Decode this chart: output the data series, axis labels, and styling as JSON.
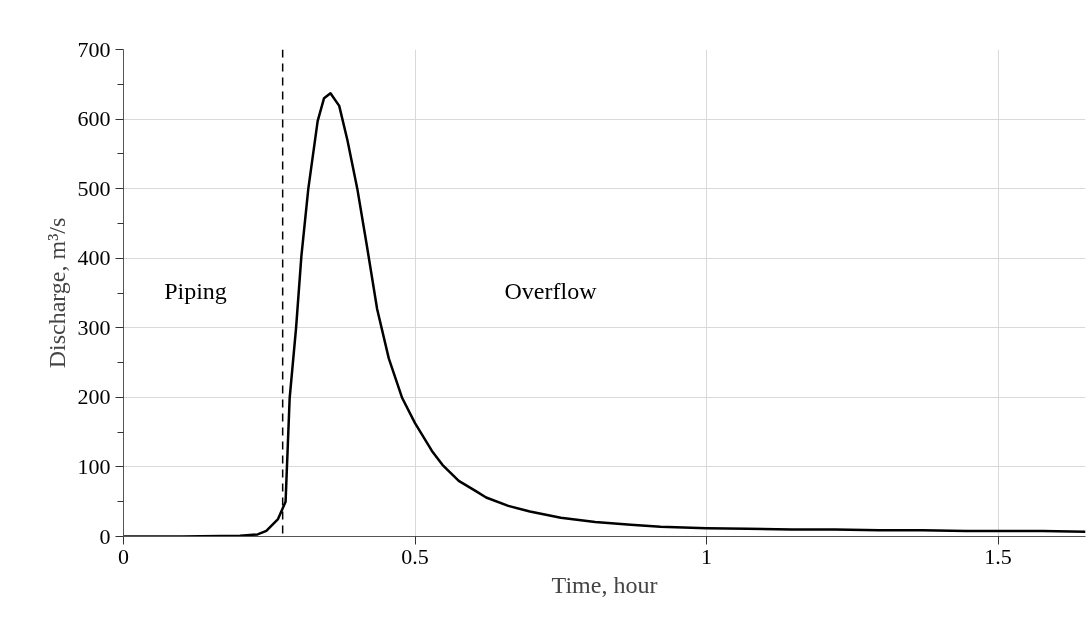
{
  "chart_data": {
    "type": "line",
    "xlabel": "Time, hour",
    "ylabel": "Discharge, m³/s",
    "x": [
      0,
      0.1,
      0.2,
      0.23,
      0.245,
      0.265,
      0.278,
      0.285,
      0.296,
      0.305,
      0.317,
      0.333,
      0.344,
      0.355,
      0.37,
      0.384,
      0.401,
      0.418,
      0.435,
      0.455,
      0.478,
      0.5,
      0.529,
      0.547,
      0.575,
      0.603,
      0.622,
      0.66,
      0.697,
      0.75,
      0.809,
      0.87,
      0.921,
      1.0,
      1.07,
      1.146,
      1.22,
      1.296,
      1.37,
      1.445,
      1.52,
      1.576,
      1.65
    ],
    "series": [
      {
        "color": "#000000",
        "values": [
          0,
          0,
          1,
          3,
          8,
          25,
          50,
          199,
          300,
          402,
          500,
          597,
          630,
          637,
          619,
          570,
          500,
          415,
          327,
          256,
          199,
          163,
          123,
          103,
          80,
          66,
          56,
          44,
          36,
          27,
          21,
          17,
          14,
          12,
          11,
          10,
          10,
          9,
          9,
          8,
          8,
          8,
          7
        ]
      }
    ],
    "xlim": [
      0,
      1.65
    ],
    "ylim": [
      0,
      700
    ],
    "xticks": [
      0,
      {
        "value": 0.5,
        "label": "0.5"
      },
      1,
      {
        "value": 1.5,
        "label": "1.5"
      }
    ],
    "yticks": [
      0,
      100,
      200,
      300,
      400,
      500,
      600,
      700
    ],
    "grid": true,
    "marker": "none",
    "line_style": "solid",
    "ref_lines": [
      {
        "axis": "x",
        "value": 0.273,
        "label": null,
        "color": "#000000",
        "line_style": "dashed"
      }
    ],
    "annotations": [
      "Piping",
      "Overflow"
    ]
  }
}
